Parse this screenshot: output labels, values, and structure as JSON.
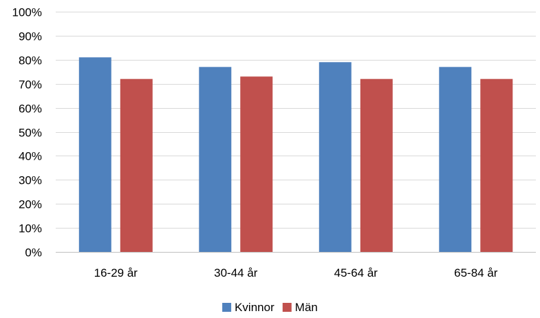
{
  "chart_data": {
    "type": "bar",
    "categories": [
      "16-29 år",
      "30-44 år",
      "45-64 år",
      "65-84 år"
    ],
    "series": [
      {
        "name": "Kvinnor",
        "values": [
          81,
          77,
          79,
          77
        ],
        "color": "#4F81BD"
      },
      {
        "name": "Män",
        "values": [
          72,
          73,
          72,
          72
        ],
        "color": "#C0504D"
      }
    ],
    "title": "",
    "xlabel": "",
    "ylabel": "",
    "ylim": [
      0,
      100
    ],
    "yticks": [
      "0%",
      "10%",
      "20%",
      "30%",
      "40%",
      "50%",
      "60%",
      "70%",
      "80%",
      "90%",
      "100%"
    ],
    "grid": true,
    "gridColor": "#D9D9D9",
    "legend_position": "bottom"
  }
}
